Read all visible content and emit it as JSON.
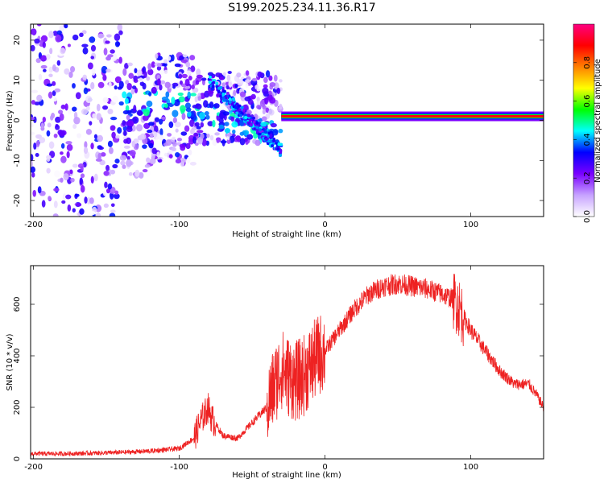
{
  "figure_title": "S199.2025.234.11.36.R17",
  "chart_data": [
    {
      "type": "heatmap",
      "xlabel": "Height of straight line (km)",
      "ylabel": "Frequency (Hz)",
      "xlim": [
        -202,
        150
      ],
      "ylim": [
        -24,
        24
      ],
      "xticks": [
        -200,
        -100,
        0,
        100
      ],
      "yticks": [
        -20,
        -10,
        0,
        10,
        20
      ],
      "colorbar": {
        "label": "Normalized spectral amplitude",
        "range": [
          0,
          1
        ],
        "ticks": [
          0.0,
          0.2,
          0.4,
          0.6,
          0.8
        ],
        "tick_labels": [
          "0.0",
          "0.2",
          "0.4",
          "0.6",
          "0.8"
        ],
        "colormap": [
          "#ffffff",
          "#c7a3ff",
          "#7a00ff",
          "#0000ff",
          "#00ffff",
          "#00ff00",
          "#ffff00",
          "#ff8000",
          "#ff0000",
          "#ff0080"
        ]
      },
      "features": {
        "carrier_line": {
          "x_range": [
            -30,
            150
          ],
          "frequency_hz": 1.0,
          "amplitude": 0.9
        },
        "scatter_region": {
          "x_range": [
            -202,
            -30
          ],
          "frequency_range": [
            -24,
            24
          ]
        }
      }
    },
    {
      "type": "line",
      "xlabel": "Height of straight line (km)",
      "ylabel": "SNR (10 * v/v)",
      "xlim": [
        -202,
        150
      ],
      "ylim": [
        0,
        750
      ],
      "xticks": [
        -200,
        -100,
        0,
        100
      ],
      "yticks": [
        0,
        200,
        400,
        600
      ],
      "line_color": "#ee2222",
      "series": [
        {
          "name": "SNR",
          "x": [
            -202,
            -180,
            -160,
            -140,
            -120,
            -100,
            -90,
            -85,
            -80,
            -78,
            -70,
            -60,
            -50,
            -40,
            -35,
            -30,
            -25,
            -20,
            -15,
            -10,
            -5,
            0,
            10,
            20,
            30,
            40,
            50,
            60,
            70,
            80,
            88,
            92,
            95,
            100,
            110,
            120,
            130,
            140,
            145,
            150
          ],
          "y": [
            20,
            20,
            22,
            25,
            30,
            40,
            80,
            150,
            200,
            160,
            90,
            80,
            140,
            200,
            280,
            350,
            320,
            300,
            320,
            360,
            400,
            420,
            500,
            580,
            640,
            670,
            680,
            670,
            660,
            640,
            620,
            590,
            550,
            500,
            420,
            340,
            290,
            290,
            250,
            200
          ]
        }
      ]
    }
  ]
}
